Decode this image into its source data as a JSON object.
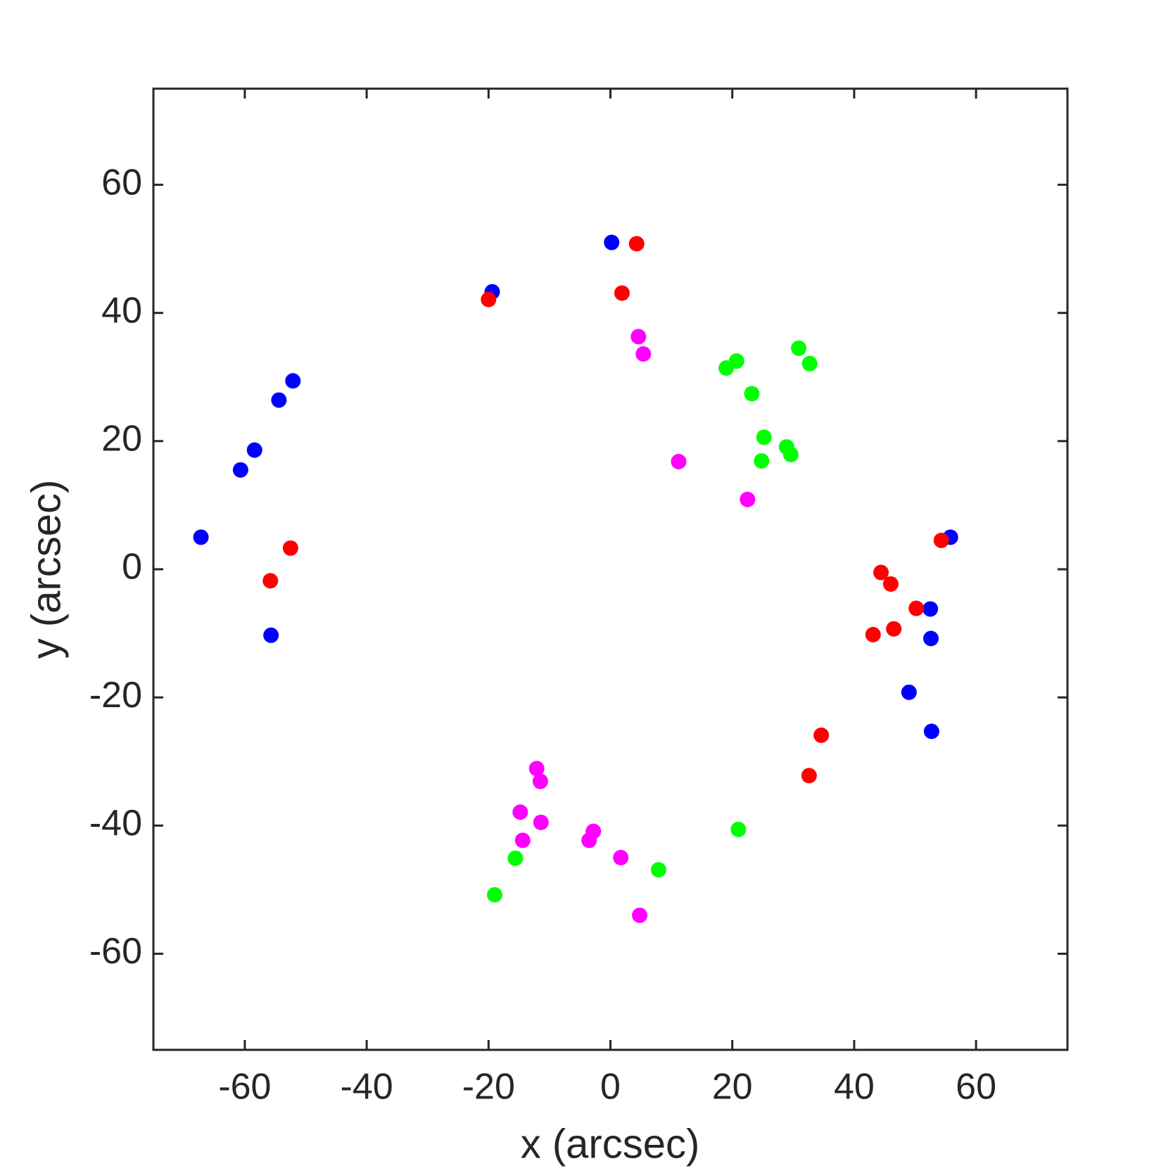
{
  "chart_data": {
    "type": "scatter",
    "x_label": "x (arcsec)",
    "y_label": "y (arcsec)",
    "xlim": [
      -75,
      75
    ],
    "ylim": [
      -75,
      75
    ],
    "xticks": [
      -60,
      -40,
      -20,
      0,
      20,
      40,
      60
    ],
    "yticks": [
      -60,
      -40,
      -20,
      0,
      20,
      40,
      60
    ],
    "grid": false,
    "series": [
      {
        "color": "#0000ff",
        "x": [
          -67.2,
          -60.7,
          -58.4,
          -54.4,
          -52.1,
          -55.7,
          -19.4,
          0.2,
          55.8,
          52.5,
          52.6,
          49.0,
          52.7
        ],
        "y": [
          5.0,
          15.5,
          18.6,
          26.4,
          29.4,
          -10.3,
          43.3,
          51.0,
          5.0,
          -6.2,
          -10.8,
          -19.2,
          -25.3
        ]
      },
      {
        "color": "#ff0000",
        "x": [
          -20.0,
          1.9,
          4.3,
          -52.5,
          -55.8,
          54.3,
          44.4,
          46.0,
          50.2,
          46.5,
          43.1,
          34.6,
          32.6
        ],
        "y": [
          42.1,
          43.1,
          50.8,
          3.3,
          -1.8,
          4.5,
          -0.5,
          -2.3,
          -6.1,
          -9.3,
          -10.2,
          -25.9,
          -32.2
        ]
      },
      {
        "color": "#ff00ff",
        "x": [
          4.6,
          5.4,
          11.2,
          22.5,
          -12.1,
          -11.5,
          -14.8,
          -11.4,
          -14.4,
          -2.8,
          -3.5,
          1.7,
          4.8
        ],
        "y": [
          36.3,
          33.6,
          16.8,
          10.9,
          -31.1,
          -33.1,
          -37.9,
          -39.5,
          -42.3,
          -40.9,
          -42.3,
          -45.0,
          -54.0
        ]
      },
      {
        "color": "#00ff00",
        "x": [
          19.0,
          20.7,
          23.2,
          30.9,
          32.7,
          25.2,
          24.8,
          28.9,
          29.6,
          21.0,
          7.9,
          -15.6,
          -19.0
        ],
        "y": [
          31.4,
          32.5,
          27.4,
          34.5,
          32.1,
          20.6,
          16.9,
          19.1,
          17.9,
          -40.6,
          -46.9,
          -45.1,
          -50.8
        ]
      }
    ]
  }
}
